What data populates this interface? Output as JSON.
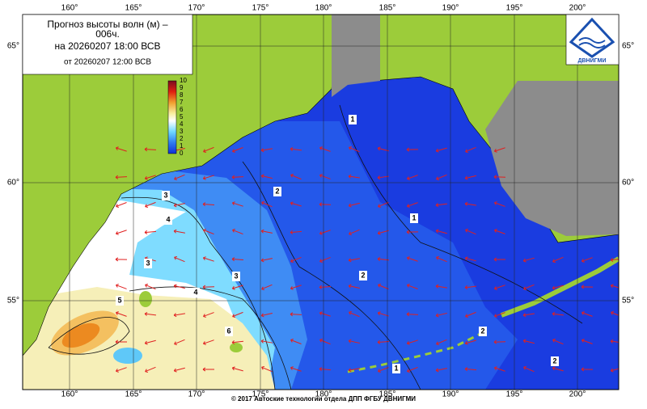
{
  "title": {
    "line1": "Прогноз высоты волн (м) –",
    "line1b": "006ч.",
    "line2": "на 20260207 18:00 ВСВ",
    "line3": "от 20260207 12:00 ВСВ"
  },
  "colorbar": {
    "ticks": [
      0,
      1,
      2,
      3,
      4,
      5,
      6,
      7,
      8,
      9,
      10
    ]
  },
  "lon_labels": [
    "160°",
    "165°",
    "170°",
    "175°",
    "180°",
    "185°",
    "190°",
    "195°",
    "200°"
  ],
  "lat_labels": [
    "65°",
    "60°",
    "55°"
  ],
  "contour_labels": [
    3,
    4,
    3,
    3,
    5,
    4,
    6,
    2,
    1,
    1,
    2,
    2,
    1,
    2
  ],
  "logo": "ДВНИГМИ",
  "footer": "© 2017 Автоские технологии отдела ДПП ФГБУ ДВНИГМИ"
}
